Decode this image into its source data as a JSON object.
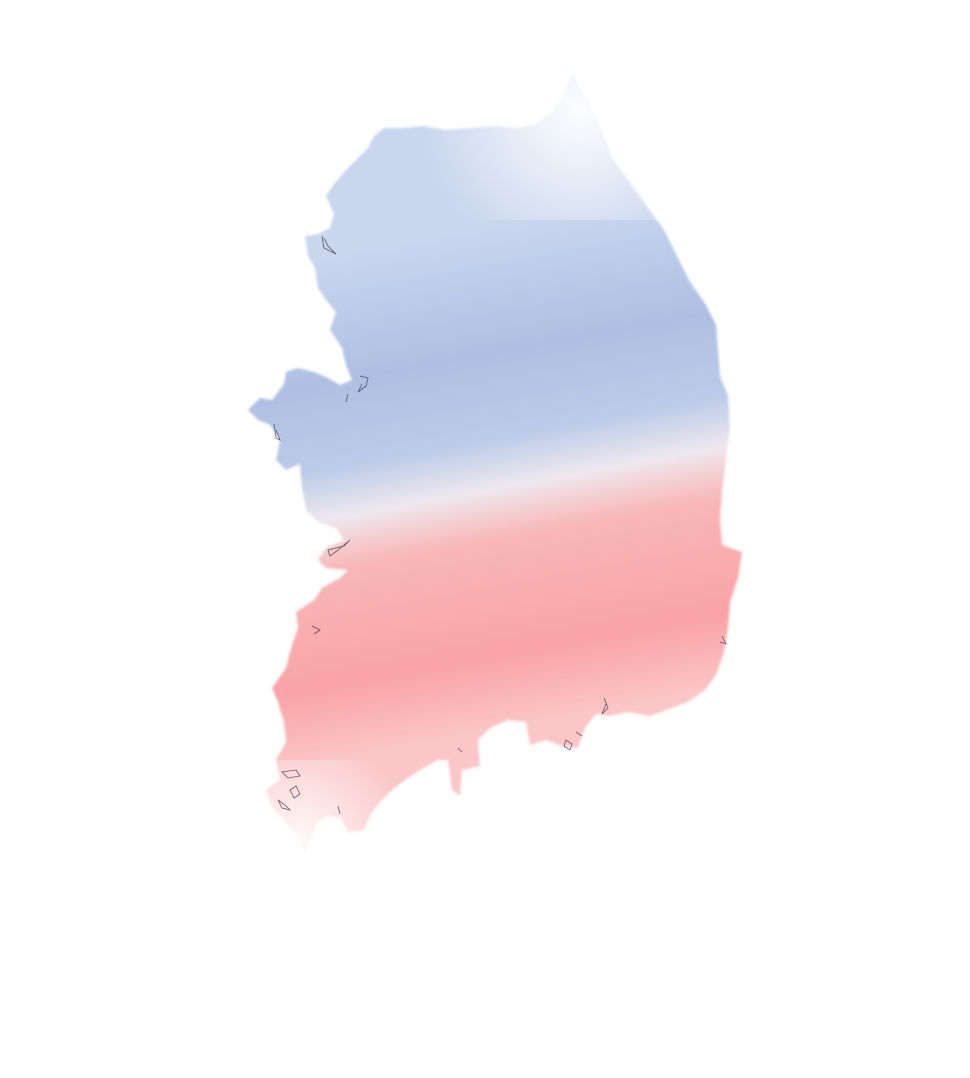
{
  "map": {
    "subject": "South Korea",
    "style": "choropleth gradient, no labels",
    "colors": {
      "background": "#ffffff",
      "north_blue": "#a8bbe0",
      "light_blue": "#c3d1ea",
      "neutral": "#eee8ee",
      "south_red": "#f9a3a5",
      "light_red": "#fbc2c4",
      "coast_line": "#3a2a3a"
    }
  }
}
